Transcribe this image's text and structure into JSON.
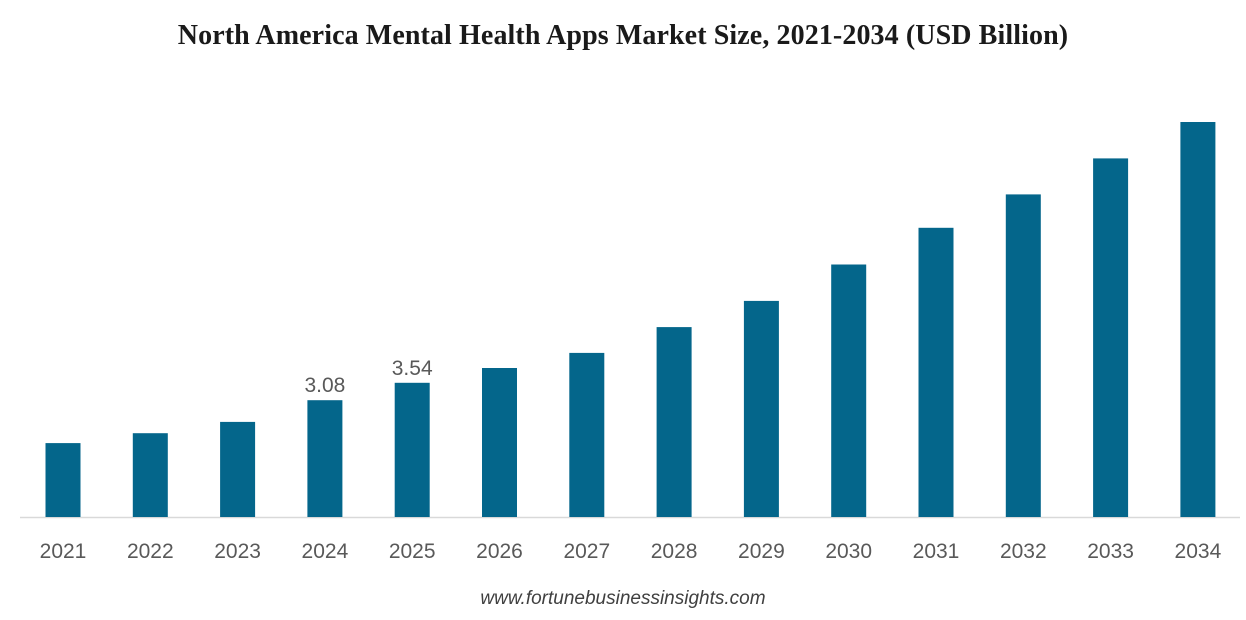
{
  "chart_data": {
    "type": "bar",
    "title": "North America Mental Health Apps Market Size, 2021-2034 (USD Billion)",
    "xlabel": "",
    "ylabel": "",
    "categories": [
      "2021",
      "2022",
      "2023",
      "2024",
      "2025",
      "2026",
      "2027",
      "2028",
      "2029",
      "2030",
      "2031",
      "2032",
      "2033",
      "2034"
    ],
    "values": [
      1.95,
      2.21,
      2.51,
      3.08,
      3.54,
      3.93,
      4.33,
      5.01,
      5.7,
      6.66,
      7.63,
      8.51,
      9.46,
      10.42
    ],
    "data_labels": {
      "2024": "3.08",
      "2025": "3.54"
    },
    "ylim": [
      0,
      10.42
    ],
    "grid": false,
    "bar_color": "#04668B",
    "axis_color": "#d9d9d9"
  },
  "source": "www.fortunebusinessinsights.com"
}
